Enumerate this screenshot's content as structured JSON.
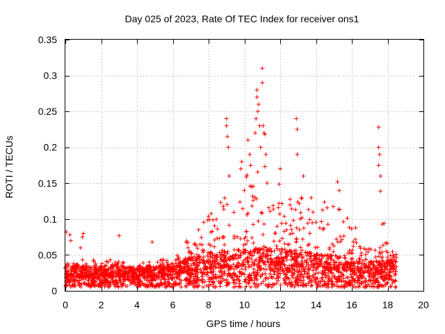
{
  "chart_data": {
    "type": "scatter",
    "title": "Day 025 of 2023, Rate Of TEC Index for receiver ons1",
    "xlabel": "GPS time / hours",
    "ylabel": "ROTI / TECUs",
    "xlim": [
      0,
      20
    ],
    "ylim": [
      0,
      0.35
    ],
    "grid": true,
    "marker": "+",
    "series_color": "#ff0000",
    "x_ticks": [
      0,
      2,
      4,
      6,
      8,
      10,
      12,
      14,
      16,
      18,
      20
    ],
    "x_tick_labels": [
      "0",
      "2",
      "4",
      "6",
      "8",
      "10",
      "12",
      "14",
      "16",
      "18",
      "20"
    ],
    "y_ticks": [
      0,
      0.05,
      0.1,
      0.15,
      0.2,
      0.25,
      0.3,
      0.35
    ],
    "y_tick_labels": [
      "0",
      "0.05",
      "0.1",
      "0.15",
      "0.2",
      "0.25",
      "0.3",
      "0.35"
    ],
    "data_range_x": [
      0,
      18.5
    ],
    "envelope": [
      {
        "x": 0.0,
        "base": 0.022,
        "peak": 0.045
      },
      {
        "x": 1.0,
        "base": 0.02,
        "peak": 0.045
      },
      {
        "x": 2.0,
        "base": 0.02,
        "peak": 0.042
      },
      {
        "x": 3.0,
        "base": 0.02,
        "peak": 0.045
      },
      {
        "x": 4.0,
        "base": 0.019,
        "peak": 0.04
      },
      {
        "x": 5.0,
        "base": 0.019,
        "peak": 0.04
      },
      {
        "x": 6.0,
        "base": 0.022,
        "peak": 0.05
      },
      {
        "x": 7.0,
        "base": 0.028,
        "peak": 0.075
      },
      {
        "x": 8.0,
        "base": 0.032,
        "peak": 0.11
      },
      {
        "x": 9.0,
        "base": 0.034,
        "peak": 0.14
      },
      {
        "x": 10.0,
        "base": 0.036,
        "peak": 0.16
      },
      {
        "x": 11.0,
        "base": 0.038,
        "peak": 0.18
      },
      {
        "x": 12.0,
        "base": 0.036,
        "peak": 0.15
      },
      {
        "x": 13.0,
        "base": 0.034,
        "peak": 0.13
      },
      {
        "x": 14.0,
        "base": 0.032,
        "peak": 0.13
      },
      {
        "x": 15.0,
        "base": 0.03,
        "peak": 0.12
      },
      {
        "x": 16.0,
        "base": 0.028,
        "peak": 0.1
      },
      {
        "x": 17.0,
        "base": 0.024,
        "peak": 0.06
      },
      {
        "x": 18.0,
        "base": 0.026,
        "peak": 0.07
      },
      {
        "x": 18.5,
        "base": 0.024,
        "peak": 0.06
      }
    ],
    "outliers": [
      [
        0.05,
        0.082
      ],
      [
        0.25,
        0.078
      ],
      [
        0.3,
        0.07
      ],
      [
        0.85,
        0.06
      ],
      [
        0.95,
        0.075
      ],
      [
        1.0,
        0.08
      ],
      [
        3.0,
        0.077
      ],
      [
        4.85,
        0.068
      ],
      [
        9.0,
        0.24
      ],
      [
        9.0,
        0.23
      ],
      [
        9.05,
        0.215
      ],
      [
        9.1,
        0.2
      ],
      [
        9.15,
        0.16
      ],
      [
        9.8,
        0.17
      ],
      [
        9.85,
        0.18
      ],
      [
        10.0,
        0.14
      ],
      [
        10.2,
        0.21
      ],
      [
        10.3,
        0.19
      ],
      [
        10.35,
        0.175
      ],
      [
        10.6,
        0.22
      ],
      [
        10.65,
        0.24
      ],
      [
        10.7,
        0.28
      ],
      [
        10.7,
        0.27
      ],
      [
        10.75,
        0.25
      ],
      [
        10.8,
        0.26
      ],
      [
        10.85,
        0.23
      ],
      [
        10.9,
        0.2
      ],
      [
        11.0,
        0.29
      ],
      [
        11.0,
        0.31
      ],
      [
        11.05,
        0.23
      ],
      [
        11.1,
        0.22
      ],
      [
        11.15,
        0.218
      ],
      [
        11.2,
        0.19
      ],
      [
        12.0,
        0.17
      ],
      [
        12.9,
        0.24
      ],
      [
        12.95,
        0.225
      ],
      [
        12.95,
        0.19
      ],
      [
        13.3,
        0.16
      ],
      [
        15.2,
        0.152
      ],
      [
        15.3,
        0.14
      ],
      [
        17.5,
        0.228
      ],
      [
        17.5,
        0.2
      ],
      [
        17.55,
        0.19
      ],
      [
        17.5,
        0.175
      ],
      [
        17.6,
        0.16
      ],
      [
        17.6,
        0.139
      ],
      [
        17.7,
        0.093
      ],
      [
        17.8,
        0.094
      ]
    ]
  }
}
